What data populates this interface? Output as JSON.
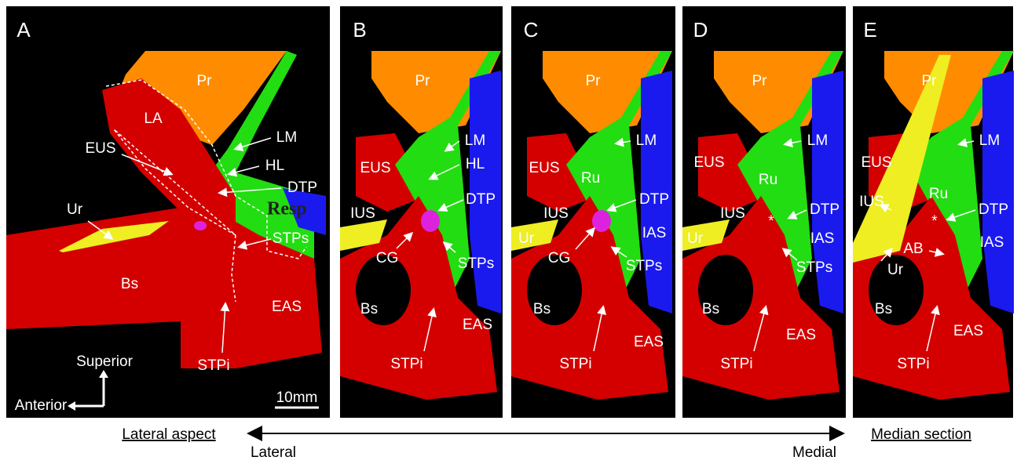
{
  "panels": [
    {
      "letter": "A",
      "labels": [
        "Pr",
        "LA",
        "LM",
        "EUS",
        "HL",
        "DTP",
        "Ur",
        "STPs",
        "Bs",
        "EAS",
        "STPi",
        "Superior",
        "Anterior",
        "10mm"
      ]
    },
    {
      "letter": "B",
      "labels": [
        "Pr",
        "LM",
        "EUS",
        "HL",
        "DTP",
        "IUS",
        "CG",
        "STPs",
        "Bs",
        "EAS",
        "STPi"
      ]
    },
    {
      "letter": "C",
      "labels": [
        "Pr",
        "LM",
        "EUS",
        "Ru",
        "DTP",
        "IUS",
        "IAS",
        "Ur",
        "CG",
        "STPs",
        "Bs",
        "EAS",
        "STPi"
      ]
    },
    {
      "letter": "D",
      "labels": [
        "Pr",
        "LM",
        "EUS",
        "Ru",
        "DTP",
        "IUS",
        "IAS",
        "Ur",
        "STPs",
        "Bs",
        "EAS",
        "STPi",
        "*"
      ]
    },
    {
      "letter": "E",
      "labels": [
        "Pr",
        "LM",
        "EUS",
        "Ru",
        "IUS",
        "DTP",
        "IAS",
        "AB",
        "Ur",
        "Bs",
        "EAS",
        "STPi",
        "*"
      ]
    }
  ],
  "overlay": "Resp",
  "captions": {
    "left": "Lateral aspect",
    "right": "Median section"
  },
  "axis": {
    "left": "Lateral",
    "right": "Medial"
  }
}
